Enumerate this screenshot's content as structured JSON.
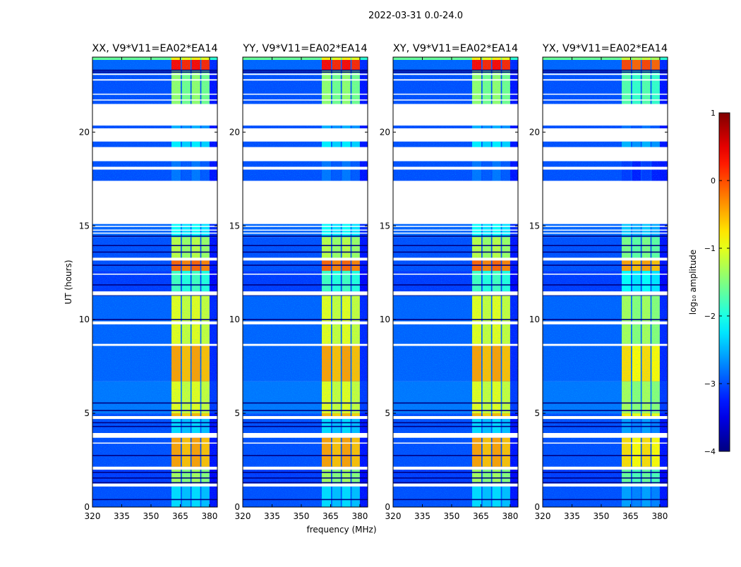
{
  "chart_data": {
    "type": "heatmap",
    "title": "2022-03-31 0.0-24.0",
    "xlabel": "frequency (MHz)",
    "ylabel": "UT (hours)",
    "xlim": [
      320,
      384
    ],
    "ylim": [
      0,
      24
    ],
    "xticks": [
      320,
      335,
      350,
      365,
      380
    ],
    "yticks": [
      0,
      5,
      10,
      15,
      20
    ],
    "panels": [
      {
        "title": "XX, V9*V11=EA02*EA14",
        "band_offset": 0
      },
      {
        "title": "YY, V9*V11=EA02*EA14",
        "band_offset": 0
      },
      {
        "title": "XY, V9*V11=EA02*EA14",
        "band_offset": 0
      },
      {
        "title": "YX, V9*V11=EA02*EA14",
        "band_offset": -0.3
      }
    ],
    "colorbar": {
      "label": "log₁₀ amplitude",
      "range": [
        -4,
        1
      ],
      "ticks": [
        1,
        0,
        -1,
        -2,
        -3,
        -4
      ],
      "tick_labels": [
        "1",
        "0",
        "−1",
        "−2",
        "−3",
        "−4"
      ],
      "colormap": "jet"
    },
    "band_range_mhz": [
      360.5,
      380
    ],
    "channel_gaps_mhz": [
      365.2,
      370.2,
      375.2
    ],
    "time_segments": [
      {
        "t0": 23.85,
        "t1": 24.0,
        "bg": -1.6,
        "band": -0.8
      },
      {
        "t0": 23.3,
        "t1": 23.85,
        "bg": -2.9,
        "band": 0.35
      },
      {
        "t0": 21.5,
        "t1": 23.3,
        "bg": -3.0,
        "band": -1.4
      },
      {
        "t0": 20.2,
        "t1": 20.35,
        "bg": -3.0,
        "band": -2.5
      },
      {
        "t0": 19.2,
        "t1": 19.5,
        "bg": -3.0,
        "band": -2.2
      },
      {
        "t0": 17.4,
        "t1": 18.45,
        "bg": -3.0,
        "band": -2.8
      },
      {
        "t0": 14.4,
        "t1": 15.1,
        "bg": -2.9,
        "band": -2.1
      },
      {
        "t0": 13.2,
        "t1": 14.4,
        "bg": -3.0,
        "band": -1.2
      },
      {
        "t0": 12.6,
        "t1": 13.2,
        "bg": -3.0,
        "band": -0.1
      },
      {
        "t0": 11.5,
        "t1": 12.6,
        "bg": -3.1,
        "band": -1.8
      },
      {
        "t0": 9.9,
        "t1": 11.3,
        "bg": -2.9,
        "band": -1.0
      },
      {
        "t0": 8.7,
        "t1": 9.75,
        "bg": -2.9,
        "band": -1.0
      },
      {
        "t0": 6.7,
        "t1": 8.6,
        "bg": -2.9,
        "band": -0.4
      },
      {
        "t0": 5.0,
        "t1": 6.7,
        "bg": -2.8,
        "band": -1.0
      },
      {
        "t0": 4.85,
        "t1": 5.0,
        "bg": -3.0,
        "band": -0.5
      },
      {
        "t0": 3.95,
        "t1": 4.7,
        "bg": -3.0,
        "band": -2.3
      },
      {
        "t0": 2.15,
        "t1": 3.7,
        "bg": -3.0,
        "band": -0.4
      },
      {
        "t0": 1.25,
        "t1": 2.0,
        "bg": -3.1,
        "band": -1.3
      },
      {
        "t0": 0.0,
        "t1": 1.1,
        "bg": -3.0,
        "band": -2.3
      }
    ],
    "flagged_intervals": [
      [
        23.05,
        23.12
      ],
      [
        22.75,
        22.82
      ],
      [
        22.0,
        22.05
      ],
      [
        21.7,
        21.74
      ],
      [
        20.35,
        21.5
      ],
      [
        19.5,
        20.2
      ],
      [
        18.45,
        19.2
      ],
      [
        18.0,
        18.15
      ],
      [
        15.1,
        17.4
      ],
      [
        14.95,
        15.0
      ],
      [
        14.75,
        14.8
      ],
      [
        14.6,
        14.64
      ],
      [
        13.15,
        13.3
      ],
      [
        12.4,
        12.45
      ],
      [
        11.3,
        11.5
      ],
      [
        9.75,
        9.9
      ],
      [
        8.6,
        8.7
      ],
      [
        4.7,
        4.85
      ],
      [
        3.7,
        3.95
      ],
      [
        3.4,
        3.44
      ],
      [
        2.0,
        2.15
      ],
      [
        1.1,
        1.25
      ]
    ],
    "low_amplitude_rows": [
      23.3,
      23.2,
      14.45,
      13.95,
      13.6,
      12.9,
      11.85,
      11.3,
      10.0,
      5.55,
      5.15,
      4.5,
      4.3,
      2.75,
      1.85,
      1.55,
      1.3,
      0.4
    ]
  }
}
